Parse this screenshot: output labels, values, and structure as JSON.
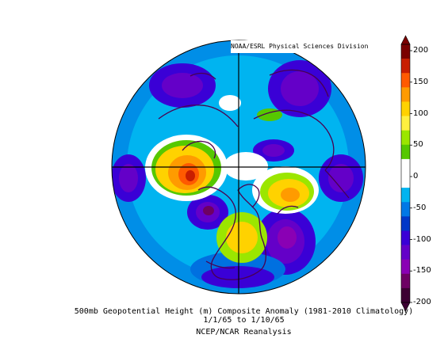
{
  "credit": "NOAA/ESRL Physical Sciences Division",
  "caption": {
    "line1": "500mb Geopotential Height (m) Composite Anomaly (1981-2010 Climatology)",
    "line2": "1/1/65  to 1/10/65",
    "line3": "NCEP/NCAR Reanalysis"
  },
  "colorbar": {
    "ticks": [
      "200",
      "150",
      "100",
      "50",
      "0",
      "-50",
      "-100",
      "-150",
      "-200"
    ],
    "colors": [
      "#7a0000",
      "#c81e00",
      "#ff5a00",
      "#ff9b00",
      "#ffd200",
      "#fff040",
      "#9be600",
      "#56c800",
      "#ffffff",
      "#ffffff",
      "#00b4f0",
      "#0078e6",
      "#0038c8",
      "#3a00d6",
      "#6400c8",
      "#8a00b4",
      "#6e0064",
      "#3c0032"
    ]
  },
  "map": {
    "projection": "north-polar-stereographic",
    "colors": {
      "ocean_background": "#00b4f0",
      "land_outline": "#4a0050",
      "grid_line": "#000000"
    }
  }
}
